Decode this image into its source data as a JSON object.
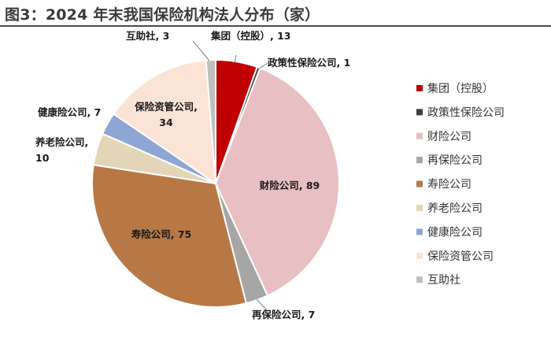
{
  "title": "图3：2024 年末我国保险机构法人分布（家）",
  "chart_data": {
    "type": "pie",
    "title": "图3：2024 年末我国保险机构法人分布（家）",
    "unit": "家",
    "categories": [
      "集团（控股）",
      "政策性保险公司",
      "财险公司",
      "再保险公司",
      "寿险公司",
      "养老险公司",
      "健康险公司",
      "保险资管公司",
      "互助社"
    ],
    "values": [
      13,
      1,
      89,
      7,
      75,
      10,
      7,
      34,
      3
    ],
    "colors": [
      "#c00000",
      "#404040",
      "#e8bfc2",
      "#a6a6a6",
      "#b87845",
      "#e3d5b8",
      "#8ea6d3",
      "#fbe3d6",
      "#bfbfbf"
    ],
    "legend_position": "right",
    "labels": [
      [
        "集团（控股）, 13"
      ],
      [
        "政策性保险公司, 1"
      ],
      [
        "财险公司, 89"
      ],
      [
        "再保险公司, 7"
      ],
      [
        "寿险公司, 75"
      ],
      [
        "养老险公司,",
        "10"
      ],
      [
        "健康险公司, 7"
      ],
      [
        "保险资管公司,",
        "34"
      ],
      [
        "互助社, 3"
      ]
    ]
  }
}
